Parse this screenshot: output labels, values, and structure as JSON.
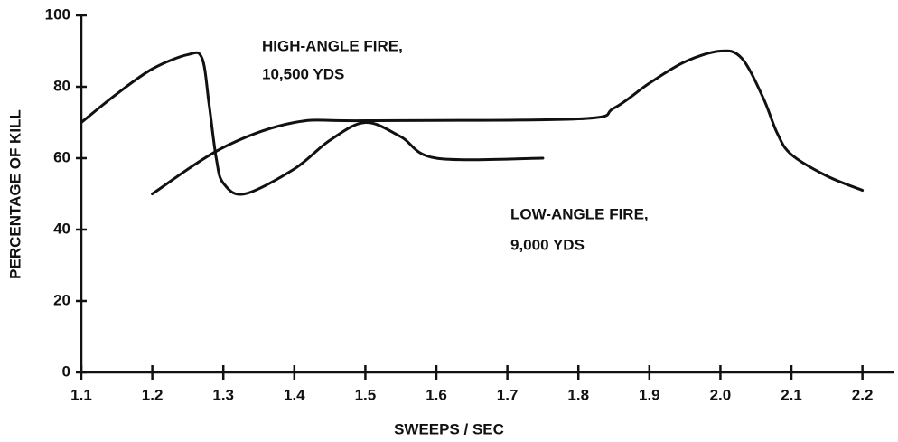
{
  "chart_data": {
    "type": "line",
    "xlabel": "SWEEPS / SEC",
    "ylabel": "PERCENTAGE OF KILL",
    "xlim": [
      1.1,
      2.245
    ],
    "ylim": [
      0,
      100
    ],
    "xticks": [
      1.1,
      1.2,
      1.3,
      1.4,
      1.5,
      1.6,
      1.7,
      1.8,
      1.9,
      {
        "value": 2,
        "label": "2.0"
      },
      2.1,
      2.2
    ],
    "yticks": [
      0,
      20,
      40,
      60,
      80,
      100
    ],
    "series": [
      {
        "color": "#111111",
        "x": [
          1.1,
          1.15,
          1.2,
          1.25,
          1.27,
          1.28,
          1.29,
          1.3,
          1.33,
          1.4,
          1.45,
          1.5,
          1.55,
          1.6,
          1.75
        ],
        "values": [
          70,
          78,
          85,
          89,
          88,
          75,
          60,
          53,
          50,
          57,
          65,
          70,
          66,
          60,
          60
        ]
      },
      {
        "color": "#111111",
        "x": [
          1.2,
          1.3,
          1.4,
          1.5,
          1.8,
          1.85,
          1.9,
          1.95,
          2.0,
          2.03,
          2.06,
          2.08,
          2.1,
          2.15,
          2.2
        ],
        "values": [
          50,
          63,
          70,
          70.5,
          71,
          74,
          81,
          87,
          90,
          88,
          77,
          67,
          61,
          55,
          51
        ]
      }
    ],
    "annotations": [
      {
        "lines": [
          "HIGH-ANGLE FIRE,",
          "10,500 YDS"
        ]
      },
      {
        "lines": [
          "LOW-ANGLE FIRE,",
          "9,000 YDS"
        ]
      }
    ]
  }
}
